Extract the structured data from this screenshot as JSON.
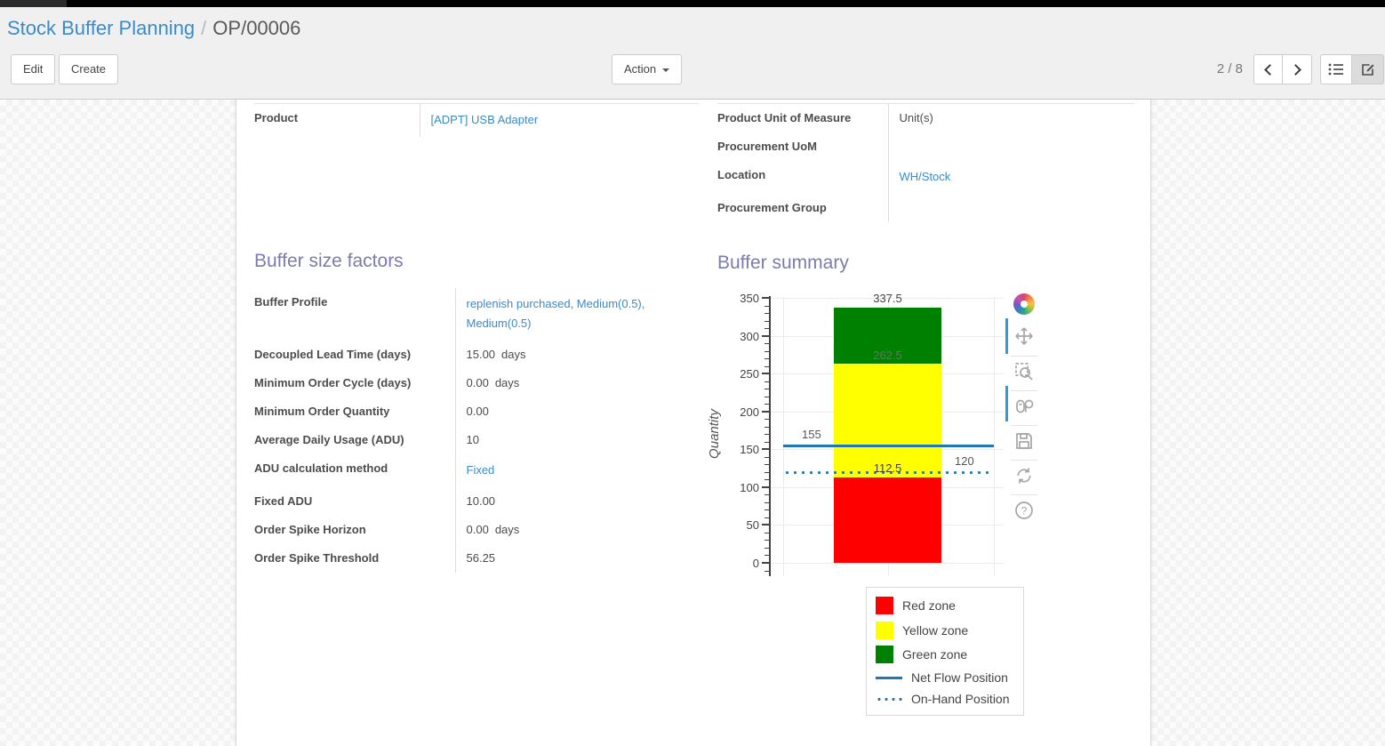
{
  "breadcrumb": {
    "parent": "Stock Buffer Planning",
    "separator": "/",
    "current": "OP/00006"
  },
  "toolbar": {
    "edit_label": "Edit",
    "create_label": "Create",
    "action_label": "Action",
    "pager": "2 / 8"
  },
  "form": {
    "product_group": {
      "fields": [
        {
          "label": "Product",
          "value": "[ADPT] USB Adapter",
          "link": true
        }
      ]
    },
    "measure_group": {
      "fields": [
        {
          "label": "Product Unit of Measure",
          "value": "Unit(s)",
          "link": false
        },
        {
          "label": "Procurement UoM",
          "value": "",
          "link": false
        },
        {
          "label": "Location",
          "value": "WH/Stock",
          "link": true
        },
        {
          "label": "Procurement Group",
          "value": "",
          "link": false
        }
      ]
    },
    "buffer_factors": {
      "title": "Buffer size factors",
      "fields": [
        {
          "label": "Buffer Profile",
          "value": "replenish purchased, Medium(0.5), Medium(0.5)",
          "link": true
        },
        {
          "label": "Decoupled Lead Time (days)",
          "value": "15.00",
          "suffix": "days"
        },
        {
          "label": "Minimum Order Cycle (days)",
          "value": "0.00",
          "suffix": "days"
        },
        {
          "label": "Minimum Order Quantity",
          "value": "0.00"
        },
        {
          "label": "Average Daily Usage (ADU)",
          "value": "10"
        },
        {
          "label": "ADU calculation method",
          "value": "Fixed",
          "link": true
        },
        {
          "label": "Fixed ADU",
          "value": "10.00"
        },
        {
          "label": "Order Spike Horizon",
          "value": "0.00",
          "suffix": "days"
        },
        {
          "label": "Order Spike Threshold",
          "value": "56.25"
        }
      ]
    },
    "buffer_summary": {
      "title": "Buffer summary"
    }
  },
  "chart_data": {
    "type": "bar",
    "title": "Buffer summary",
    "xlabel": "",
    "ylabel": "Quantity",
    "ylim": [
      0,
      350
    ],
    "yticks": [
      0,
      50,
      100,
      150,
      200,
      250,
      300,
      350
    ],
    "minor_tick_step": 10,
    "grid": true,
    "legend_position": "bottom-right",
    "series": [
      {
        "name": "Red zone",
        "type": "bar-segment",
        "from": 0,
        "to": 112.5,
        "color": "#ff0000"
      },
      {
        "name": "Yellow zone",
        "type": "bar-segment",
        "from": 112.5,
        "to": 262.5,
        "color": "#ffff00"
      },
      {
        "name": "Green zone",
        "type": "bar-segment",
        "from": 262.5,
        "to": 337.5,
        "color": "#008000"
      },
      {
        "name": "Net Flow Position",
        "type": "hline",
        "value": 155,
        "style": "solid",
        "color": "#1f77b4",
        "label": "155",
        "label_align": "left"
      },
      {
        "name": "On-Hand Position",
        "type": "hline",
        "value": 120,
        "style": "dotted",
        "color": "#1f77b4",
        "label": "120",
        "label_align": "right"
      }
    ],
    "bar_boundary_labels": [
      {
        "value": 337.5,
        "text": "337.5",
        "color": "#444444"
      },
      {
        "value": 262.5,
        "text": "262.5",
        "color": "#6e6e6e"
      },
      {
        "value": 112.5,
        "text": "112.5",
        "color": "#444444"
      }
    ]
  },
  "chart_modebar": {
    "icons": [
      {
        "name": "plotly-logo-icon",
        "active": false
      },
      {
        "name": "pan-icon",
        "active": true
      },
      {
        "name": "zoom-box-icon",
        "active": false
      },
      {
        "name": "hover-compare-icon",
        "active": true
      },
      {
        "name": "save-icon",
        "active": false
      },
      {
        "name": "reset-axes-icon",
        "active": false
      },
      {
        "name": "help-icon",
        "active": false
      }
    ]
  },
  "colors": {
    "link_blue": "#3a8bc8",
    "section_title_purple": "#7c7bad",
    "modebar_active_blue": "#2a9fd8",
    "net_flow_blue": "#1f77b4"
  }
}
